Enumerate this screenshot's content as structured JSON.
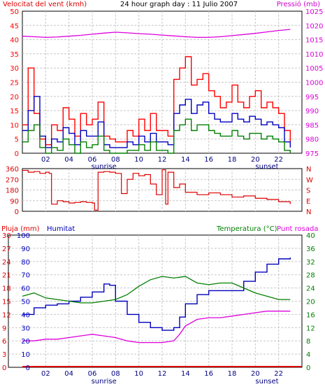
{
  "header": {
    "wind_label": "Velocitat del vent (kmh)",
    "title": "24 hour graph day : 11 Julio 2007",
    "pressure_label": "Pressió (mb)"
  },
  "panel3_labels": {
    "rain": "Pluja (mm)",
    "humidity": "Humitat",
    "temperature": "Temperatura (°C)",
    "dewpoint": "Punt rosada"
  },
  "colors": {
    "wind_gust": "#ff0000",
    "wind_avg": "#0000c0",
    "wind_min": "#008000",
    "pressure": "#dd00dd",
    "direction": "#dd0000",
    "humidity": "#0000bb",
    "temperature": "#008000",
    "dewpoint": "#dd00dd",
    "rain": "#dd0000",
    "grid": "#c8c8c8"
  },
  "chart_data": [
    {
      "type": "line",
      "title": "24 hour graph day : 11 Julio 2007",
      "x_ticks": [
        "02",
        "04",
        "06",
        "08",
        "10",
        "12",
        "14",
        "16",
        "18",
        "20",
        "22"
      ],
      "x_annotations": [
        {
          "label": "sunrise",
          "hour": 7
        },
        {
          "label": "sunset",
          "hour": 21
        }
      ],
      "x_range_hours": [
        0,
        24
      ],
      "y_left": {
        "label": "Velocitat del vent (kmh)",
        "range": [
          0,
          50
        ],
        "ticks": [
          0,
          5,
          10,
          15,
          20,
          25,
          30,
          35,
          40,
          45,
          50
        ]
      },
      "y_right": {
        "label": "Pressió (mb)",
        "range": [
          975,
          1025
        ],
        "ticks": [
          975,
          980,
          985,
          990,
          995,
          1000,
          1005,
          1010,
          1015,
          1020,
          1025
        ]
      },
      "grid": true,
      "series": [
        {
          "name": "gust",
          "axis": "left",
          "x": [
            0,
            0.5,
            1,
            1.5,
            2,
            2.5,
            3,
            3.5,
            4,
            4.5,
            5,
            5.5,
            6,
            6.5,
            7,
            7.5,
            8,
            8.5,
            9,
            9.5,
            10,
            10.5,
            11,
            11.5,
            12,
            12.5,
            13,
            13.5,
            14,
            14.5,
            15,
            15.5,
            16,
            16.5,
            17,
            17.5,
            18,
            18.5,
            19,
            19.5,
            20,
            20.5,
            21,
            21.5,
            22,
            22.5,
            23
          ],
          "y": [
            10,
            30,
            14,
            5,
            3,
            10,
            8,
            16,
            12,
            6,
            14,
            10,
            12,
            18,
            6,
            5,
            4,
            4,
            8,
            6,
            12,
            8,
            14,
            8,
            8,
            6,
            26,
            30,
            34,
            24,
            26,
            28,
            22,
            20,
            16,
            18,
            24,
            18,
            16,
            20,
            22,
            16,
            18,
            16,
            14,
            8,
            4
          ]
        },
        {
          "name": "average",
          "axis": "left",
          "x": [
            0,
            0.5,
            1,
            1.5,
            2,
            2.5,
            3,
            3.5,
            4,
            4.5,
            5,
            5.5,
            6,
            6.5,
            7,
            7.5,
            8,
            8.5,
            9,
            9.5,
            10,
            10.5,
            11,
            11.5,
            12,
            12.5,
            13,
            13.5,
            14,
            14.5,
            15,
            15.5,
            16,
            16.5,
            17,
            17.5,
            18,
            18.5,
            19,
            19.5,
            20,
            20.5,
            21,
            21.5,
            22,
            22.5,
            23
          ],
          "y": [
            8,
            15,
            20,
            6,
            2,
            5,
            4,
            9,
            7,
            3,
            8,
            6,
            6,
            11,
            3,
            2,
            2,
            2,
            4,
            3,
            6,
            4,
            7,
            4,
            4,
            3,
            14,
            17,
            19,
            14,
            17,
            18,
            14,
            12,
            11,
            11,
            14,
            12,
            11,
            13,
            12,
            10,
            11,
            10,
            9,
            4,
            2
          ]
        },
        {
          "name": "minimum",
          "axis": "left",
          "x": [
            0,
            0.5,
            1,
            1.5,
            2,
            2.5,
            3,
            3.5,
            4,
            4.5,
            5,
            5.5,
            6,
            6.5,
            7,
            7.5,
            8,
            8.5,
            9,
            9.5,
            10,
            10.5,
            11,
            11.5,
            12,
            12.5,
            13,
            13.5,
            14,
            14.5,
            15,
            15.5,
            16,
            16.5,
            17,
            17.5,
            18,
            18.5,
            19,
            19.5,
            20,
            20.5,
            21,
            21.5,
            22,
            22.5,
            23
          ],
          "y": [
            4,
            8,
            10,
            2,
            0,
            2,
            1,
            5,
            3,
            0,
            4,
            2,
            3,
            6,
            1,
            0,
            0,
            0,
            1,
            1,
            3,
            1,
            4,
            1,
            1,
            0,
            8,
            10,
            12,
            8,
            10,
            10,
            8,
            7,
            6,
            6,
            8,
            6,
            5,
            7,
            7,
            5,
            6,
            5,
            4,
            1,
            0
          ]
        },
        {
          "name": "pressure",
          "axis": "right",
          "x": [
            0,
            1,
            2,
            3,
            4,
            5,
            6,
            7,
            8,
            9,
            10,
            11,
            12,
            13,
            14,
            15,
            16,
            17,
            18,
            19,
            20,
            21,
            22,
            23
          ],
          "y": [
            1016.2,
            1016.0,
            1015.8,
            1015.9,
            1016.2,
            1016.5,
            1016.9,
            1017.3,
            1017.6,
            1017.4,
            1017.1,
            1016.9,
            1016.6,
            1016.3,
            1016.0,
            1015.8,
            1015.8,
            1016.0,
            1016.4,
            1016.8,
            1017.2,
            1017.7,
            1018.2,
            1018.6
          ]
        }
      ]
    },
    {
      "type": "line",
      "x_range_hours": [
        0,
        24
      ],
      "y_left": {
        "range": [
          0,
          360
        ],
        "ticks": [
          0,
          90,
          180,
          270,
          360
        ]
      },
      "y_right": {
        "ticks": [
          "N",
          "W",
          "S",
          "E",
          "N"
        ]
      },
      "grid": true,
      "series": [
        {
          "name": "wind direction",
          "x": [
            0,
            0.5,
            1,
            1.5,
            2,
            2.3,
            2.5,
            3,
            3.5,
            4,
            4.5,
            5,
            5.5,
            6,
            6.2,
            6.5,
            7,
            7.5,
            8,
            8.5,
            9,
            9.5,
            10,
            10.5,
            11,
            11.5,
            12,
            12.3,
            12.5,
            13,
            13.5,
            14,
            15,
            16,
            17,
            18,
            19,
            20,
            21,
            22,
            23
          ],
          "y": [
            345,
            330,
            335,
            320,
            330,
            320,
            60,
            90,
            80,
            70,
            75,
            80,
            75,
            70,
            10,
            330,
            335,
            330,
            320,
            150,
            270,
            320,
            300,
            310,
            230,
            140,
            350,
            60,
            330,
            200,
            230,
            160,
            140,
            155,
            140,
            120,
            130,
            110,
            100,
            80,
            60
          ]
        }
      ]
    },
    {
      "type": "line",
      "x_ticks": [
        "02",
        "04",
        "06",
        "08",
        "10",
        "12",
        "14",
        "16",
        "18",
        "20",
        "22"
      ],
      "x_annotations": [
        {
          "label": "sunrise",
          "hour": 7
        },
        {
          "label": "sunset",
          "hour": 21
        }
      ],
      "x_range_hours": [
        0,
        24
      ],
      "y_left_rain": {
        "label": "Pluja (mm)",
        "range": [
          0,
          30
        ],
        "ticks": [
          0,
          3,
          6,
          9,
          12,
          15,
          18,
          21,
          24,
          27,
          30
        ]
      },
      "y_left_humidity": {
        "label": "Humitat",
        "range": [
          0,
          100
        ],
        "ticks": [
          0,
          10,
          20,
          30,
          40,
          50,
          60,
          70,
          80,
          90,
          100
        ]
      },
      "y_right": {
        "label": "Temperatura (°C)",
        "range": [
          0,
          40
        ],
        "ticks": [
          0,
          4,
          8,
          12,
          16,
          20,
          24,
          28,
          32,
          36,
          40
        ]
      },
      "grid": true,
      "series": [
        {
          "name": "humidity",
          "axis": "humidity",
          "x": [
            0,
            1,
            2,
            3,
            4,
            5,
            6,
            7,
            7.5,
            8,
            9,
            10,
            11,
            12,
            13,
            13.5,
            14,
            15,
            16,
            17,
            18,
            19,
            20,
            21,
            22,
            23
          ],
          "y": [
            40,
            45,
            47,
            48,
            50,
            53,
            57,
            63,
            62,
            50,
            40,
            34,
            30,
            28,
            30,
            38,
            48,
            55,
            58,
            58,
            58,
            65,
            72,
            78,
            82,
            83
          ]
        },
        {
          "name": "temperature",
          "axis": "right",
          "x": [
            0,
            1,
            2,
            3,
            4,
            5,
            6,
            7,
            8,
            9,
            10,
            11,
            12,
            13,
            14,
            15,
            16,
            17,
            18,
            19,
            20,
            21,
            22,
            23
          ],
          "y": [
            21.5,
            22.5,
            21.0,
            20.5,
            20.0,
            19.5,
            19.5,
            20.0,
            20.5,
            22.0,
            24.5,
            26.5,
            27.5,
            27.0,
            27.5,
            25.5,
            25.0,
            25.5,
            25.5,
            24.0,
            22.5,
            21.5,
            20.5,
            20.5
          ]
        },
        {
          "name": "dewpoint",
          "axis": "right",
          "x": [
            0,
            1,
            2,
            3,
            4,
            5,
            6,
            7,
            8,
            9,
            10,
            11,
            12,
            13,
            13.5,
            14,
            15,
            16,
            17,
            18,
            19,
            20,
            21,
            22,
            23
          ],
          "y": [
            8.0,
            8.0,
            8.5,
            8.5,
            9.0,
            9.5,
            10.0,
            9.5,
            9.0,
            8.0,
            7.5,
            7.5,
            7.5,
            8.0,
            10.0,
            12.5,
            14.5,
            15.0,
            15.0,
            15.5,
            16.0,
            16.5,
            17.0,
            17.0,
            17.0
          ]
        },
        {
          "name": "rain",
          "axis": "rain",
          "x": [
            0,
            24
          ],
          "y": [
            0,
            0
          ]
        }
      ]
    }
  ]
}
